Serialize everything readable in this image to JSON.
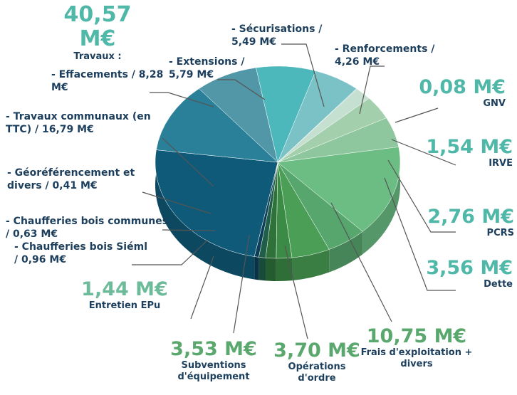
{
  "chart_data": {
    "type": "pie",
    "total_label": "40,57 M€",
    "total_title": "Travaux :",
    "categories": [
      "- Extensions /",
      "- Sécurisations /",
      "- Renforcements /",
      "GNV",
      "IRVE",
      "PCRS",
      "Dette",
      "Frais d'exploitation + divers",
      "Opérations d'ordre",
      "Subventions d'équipement",
      "Entretien EPu",
      "- Chaufferies bois Siéml /",
      "- Chaufferies bois communes /",
      "- Géoréférencement et divers /",
      "- Travaux communaux (en TTC) /",
      "- Effacements /"
    ],
    "values": [
      5.79,
      5.49,
      4.26,
      0.08,
      1.54,
      2.76,
      3.56,
      10.75,
      3.7,
      3.53,
      1.44,
      0.96,
      0.63,
      0.41,
      16.79,
      8.28
    ],
    "value_labels": [
      "5,79 M€",
      "5,49 M€",
      "4,26 M€",
      "0,08 M€",
      "1,54 M€",
      "2,76 M€",
      "3,56 M€",
      "10,75 M€",
      "3,70 M€",
      "3,53 M€",
      "1,44 M€",
      "0,96 M€",
      "0,63 M€",
      "0,41 M€",
      "16,79 M€",
      "8,28 M€"
    ],
    "colors": [
      "#5297a8",
      "#4cb8bc",
      "#7ac2c6",
      "#a6d3d3",
      "#c5e0d0",
      "#a4cfad",
      "#8ec79e",
      "#6bbd84",
      "#57a66d",
      "#4a9e55",
      "#3b8a45",
      "#2e7239",
      "#1f5e48",
      "#0d3e58",
      "#0f5a78",
      "#2a8098"
    ]
  }
}
